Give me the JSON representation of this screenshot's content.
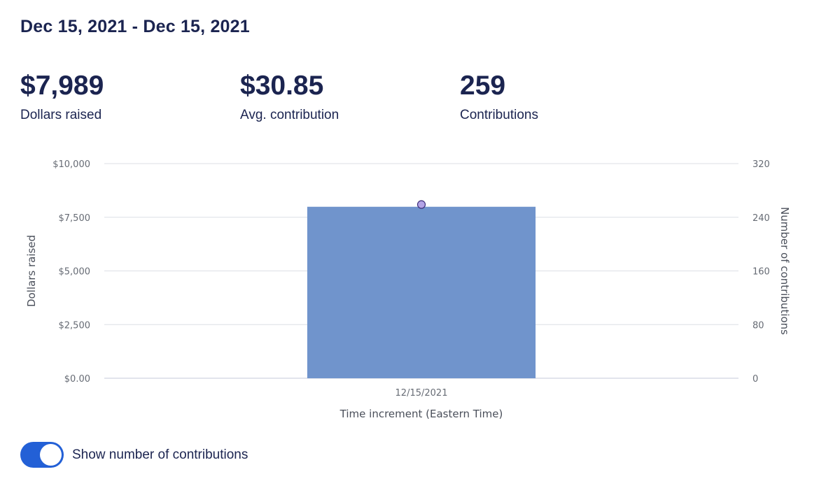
{
  "header": {
    "date_range": "Dec 15, 2021 - Dec 15, 2021"
  },
  "stats": [
    {
      "value": "$7,989",
      "label": "Dollars raised"
    },
    {
      "value": "$30.85",
      "label": "Avg. contribution"
    },
    {
      "value": "259",
      "label": "Contributions"
    }
  ],
  "toggle": {
    "label": "Show number of contributions",
    "on": true
  },
  "colors": {
    "bar": "#7094cc",
    "point_fill": "#b3a3e6",
    "point_stroke": "#3d2e7a",
    "toggle_on": "#2360d6",
    "grid": "#dcdfe5",
    "baseline": "#c4c8d8"
  },
  "chart_data": {
    "type": "bar",
    "categories": [
      "12/15/2021"
    ],
    "series": [
      {
        "values": [
          7989
        ],
        "axis": "left",
        "type": "bar"
      },
      {
        "values": [
          259
        ],
        "axis": "right",
        "type": "scatter"
      }
    ],
    "xlabel": "Time increment (Eastern Time)",
    "ylabel": "Dollars raised",
    "y2label": "Number of contributions",
    "ylim": [
      0,
      10000
    ],
    "y2lim": [
      0,
      320
    ],
    "yticks": [
      "$0.00",
      "$2,500",
      "$5,000",
      "$7,500",
      "$10,000"
    ],
    "y2ticks": [
      "0",
      "80",
      "160",
      "240",
      "320"
    ],
    "grid": true
  }
}
